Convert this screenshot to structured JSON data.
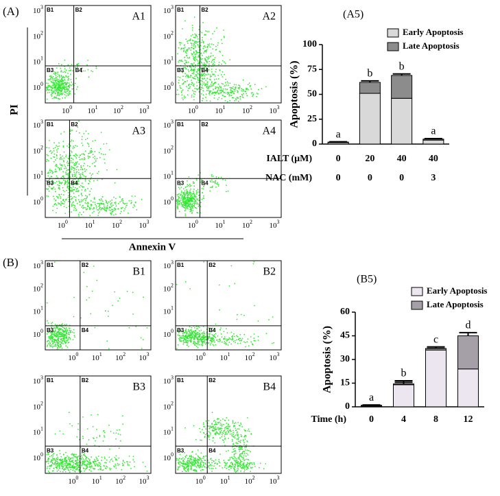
{
  "panel_labels": [
    "(A)",
    "(B)"
  ],
  "axis_titles": {
    "y": "PI",
    "x": "Annexin V"
  },
  "flow_tick_base": "10",
  "flow_tick_exponents": [
    "0",
    "1",
    "2",
    "3"
  ],
  "quadrant_labels": [
    "B1",
    "B2",
    "B3",
    "B4"
  ],
  "flow_plots": [
    "A1",
    "A2",
    "A3",
    "A4",
    "B1",
    "B2",
    "B3",
    "B4"
  ],
  "chart_data": [
    {
      "type": "bar",
      "stacked": true,
      "title": "(A5)",
      "ylabel": "Apoptosis (%)",
      "categories": [
        "0",
        "20",
        "40",
        "40"
      ],
      "category_label": "IALT (μM)",
      "extra_rows": [
        {
          "label": "NAC (mM)",
          "values": [
            "0",
            "0",
            "0",
            "3"
          ]
        }
      ],
      "series": [
        {
          "name": "Early Apoptosis",
          "color": "#d9d9d9",
          "values": [
            1.5,
            51,
            46,
            4
          ],
          "errors": [
            0.3,
            2,
            2,
            0.5
          ]
        },
        {
          "name": "Late Apoptosis",
          "color": "#8c8c8c",
          "values": [
            0.5,
            11,
            23,
            1
          ],
          "errors": [
            0.3,
            1.5,
            1.5,
            0.5
          ]
        }
      ],
      "annotations": [
        "a",
        "b",
        "b",
        "a"
      ],
      "ylim": [
        0,
        100
      ],
      "yticks": [
        0,
        25,
        50,
        75,
        100
      ]
    },
    {
      "type": "bar",
      "stacked": true,
      "title": "(B5)",
      "ylabel": "Apoptosis (%)",
      "categories": [
        "0",
        "4",
        "8",
        "12"
      ],
      "category_label": "Time (h)",
      "extra_rows": [],
      "series": [
        {
          "name": "Early Apoptosis",
          "color": "#ebe6f0",
          "values": [
            0.5,
            14,
            36,
            24
          ],
          "errors": [
            0.3,
            1.5,
            1,
            3
          ]
        },
        {
          "name": "Late Apoptosis",
          "color": "#a59fa7",
          "values": [
            0.5,
            0.5,
            1,
            21
          ],
          "errors": [
            0.2,
            2,
            1,
            2
          ]
        }
      ],
      "annotations": [
        "a",
        "b",
        "c",
        "d"
      ],
      "ylim": [
        0,
        60
      ],
      "yticks": [
        0,
        15,
        30,
        45,
        60
      ]
    }
  ]
}
